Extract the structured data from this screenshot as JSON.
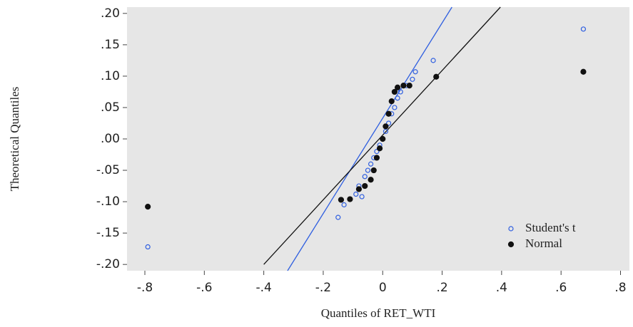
{
  "chart_data": {
    "type": "scatter",
    "x_label": "Quantiles of RET_WTI",
    "y_label": "Theoretical Quantiles",
    "xlim": [
      -0.86,
      0.83
    ],
    "ylim": [
      -0.21,
      0.21
    ],
    "xticks": [
      {
        "value": -0.8,
        "label": "-.8"
      },
      {
        "value": -0.6,
        "label": "-.6"
      },
      {
        "value": -0.4,
        "label": "-.4"
      },
      {
        "value": -0.2,
        "label": "-.2"
      },
      0,
      {
        "value": 0.2,
        "label": ".2"
      },
      {
        "value": 0.4,
        "label": ".4"
      },
      {
        "value": 0.6,
        "label": ".6"
      },
      {
        "value": 0.8,
        "label": ".8"
      }
    ],
    "yticks": [
      {
        "value": 0.2,
        "label": ".20"
      },
      {
        "value": 0.15,
        "label": ".15"
      },
      {
        "value": 0.1,
        "label": ".10"
      },
      {
        "value": 0.05,
        "label": ".05"
      },
      {
        "value": 0,
        "label": ".00"
      },
      {
        "value": -0.05,
        "label": "-.05"
      },
      {
        "value": -0.1,
        "label": "-.10"
      },
      {
        "value": -0.15,
        "label": "-.15"
      },
      {
        "value": -0.2,
        "label": "-.20"
      }
    ],
    "series": [
      {
        "name": "Student's t",
        "color": "#2f5fe0",
        "marker": "open",
        "x": [
          -0.79,
          0.675,
          0.17,
          0.11,
          0.1,
          -0.15,
          -0.13,
          -0.07,
          -0.09,
          -0.08,
          -0.06,
          -0.05,
          -0.04,
          -0.03,
          -0.02,
          -0.01,
          0,
          0.01,
          0.02,
          0.03,
          0.04,
          0.05,
          0.06,
          0.08
        ],
        "values": [
          -0.172,
          0.175,
          0.125,
          0.107,
          0.095,
          -0.125,
          -0.105,
          -0.092,
          -0.088,
          -0.075,
          -0.06,
          -0.05,
          -0.04,
          -0.03,
          -0.02,
          -0.01,
          0,
          0.012,
          0.025,
          0.04,
          0.05,
          0.065,
          0.075,
          0.085
        ]
      },
      {
        "name": "Normal",
        "color": "#111111",
        "marker": "filled",
        "x": [
          -0.79,
          0.675,
          0.18,
          -0.14,
          -0.11,
          -0.08,
          -0.06,
          -0.04,
          -0.03,
          -0.02,
          -0.01,
          0,
          0.01,
          0.02,
          0.03,
          0.04,
          0.05,
          0.07,
          0.09
        ],
        "values": [
          -0.108,
          0.107,
          0.099,
          -0.097,
          -0.096,
          -0.08,
          -0.075,
          -0.065,
          -0.05,
          -0.03,
          -0.015,
          0,
          0.02,
          0.04,
          0.06,
          0.075,
          0.082,
          0.085,
          0.085
        ]
      }
    ],
    "reference_lines": [
      {
        "color": "#2f5fe0",
        "x": [
          -0.32,
          0.233
        ],
        "values": [
          -0.21,
          0.21
        ]
      },
      {
        "color": "#111111",
        "x": [
          -0.4,
          0.396
        ],
        "values": [
          -0.2,
          0.21
        ]
      }
    ]
  }
}
